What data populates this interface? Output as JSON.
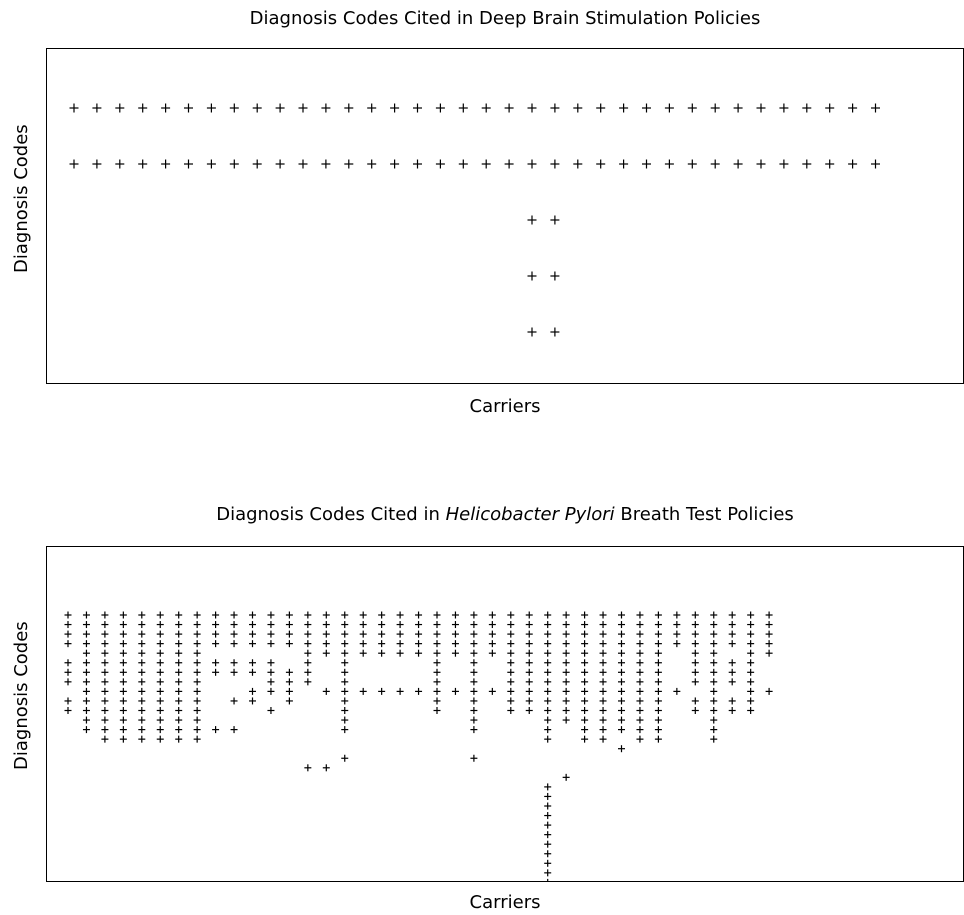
{
  "chart_data": [
    {
      "type": "scatter",
      "title": "Diagnosis Codes Cited in Deep Brain Stimulation Policies",
      "xlabel": "Carriers",
      "ylabel": "Diagnosis Codes",
      "marker": "+",
      "grid": false,
      "n_carriers": 36,
      "n_codes": 5,
      "points": [
        [
          1,
          1
        ],
        [
          2,
          1
        ],
        [
          3,
          1
        ],
        [
          4,
          1
        ],
        [
          5,
          1
        ],
        [
          6,
          1
        ],
        [
          7,
          1
        ],
        [
          8,
          1
        ],
        [
          9,
          1
        ],
        [
          10,
          1
        ],
        [
          11,
          1
        ],
        [
          12,
          1
        ],
        [
          13,
          1
        ],
        [
          14,
          1
        ],
        [
          15,
          1
        ],
        [
          16,
          1
        ],
        [
          17,
          1
        ],
        [
          18,
          1
        ],
        [
          19,
          1
        ],
        [
          20,
          1
        ],
        [
          21,
          1
        ],
        [
          22,
          1
        ],
        [
          23,
          1
        ],
        [
          24,
          1
        ],
        [
          25,
          1
        ],
        [
          26,
          1
        ],
        [
          27,
          1
        ],
        [
          28,
          1
        ],
        [
          29,
          1
        ],
        [
          30,
          1
        ],
        [
          31,
          1
        ],
        [
          32,
          1
        ],
        [
          33,
          1
        ],
        [
          34,
          1
        ],
        [
          35,
          1
        ],
        [
          36,
          1
        ],
        [
          1,
          2
        ],
        [
          2,
          2
        ],
        [
          3,
          2
        ],
        [
          4,
          2
        ],
        [
          5,
          2
        ],
        [
          6,
          2
        ],
        [
          7,
          2
        ],
        [
          8,
          2
        ],
        [
          9,
          2
        ],
        [
          10,
          2
        ],
        [
          11,
          2
        ],
        [
          12,
          2
        ],
        [
          13,
          2
        ],
        [
          14,
          2
        ],
        [
          15,
          2
        ],
        [
          16,
          2
        ],
        [
          17,
          2
        ],
        [
          18,
          2
        ],
        [
          19,
          2
        ],
        [
          20,
          2
        ],
        [
          21,
          2
        ],
        [
          22,
          2
        ],
        [
          23,
          2
        ],
        [
          24,
          2
        ],
        [
          25,
          2
        ],
        [
          26,
          2
        ],
        [
          27,
          2
        ],
        [
          28,
          2
        ],
        [
          29,
          2
        ],
        [
          30,
          2
        ],
        [
          31,
          2
        ],
        [
          32,
          2
        ],
        [
          33,
          2
        ],
        [
          34,
          2
        ],
        [
          35,
          2
        ],
        [
          36,
          2
        ],
        [
          21,
          3
        ],
        [
          22,
          3
        ],
        [
          21,
          4
        ],
        [
          22,
          4
        ],
        [
          21,
          5
        ],
        [
          22,
          5
        ]
      ]
    },
    {
      "type": "scatter",
      "title_prefix": "Diagnosis Codes Cited in ",
      "title_italic": "Helicobacter Pylori",
      "title_suffix": " Breath Test Policies",
      "xlabel": "Carriers",
      "ylabel": "Diagnosis Codes",
      "marker": "+",
      "grid": false,
      "n_carriers": 39,
      "n_codes": 29,
      "columns": [
        {
          "carrier": 1,
          "codes": [
            1,
            2,
            3,
            4,
            6,
            7,
            8,
            10,
            11
          ]
        },
        {
          "carrier": 2,
          "codes": [
            1,
            2,
            3,
            4,
            5,
            6,
            7,
            8,
            9,
            10,
            11,
            12,
            13
          ]
        },
        {
          "carrier": 3,
          "codes": [
            1,
            2,
            3,
            4,
            5,
            6,
            7,
            8,
            9,
            10,
            11,
            12,
            13,
            14
          ]
        },
        {
          "carrier": 4,
          "codes": [
            1,
            2,
            3,
            4,
            5,
            6,
            7,
            8,
            9,
            10,
            11,
            12,
            13,
            14
          ]
        },
        {
          "carrier": 5,
          "codes": [
            1,
            2,
            3,
            4,
            5,
            6,
            7,
            8,
            9,
            10,
            11,
            12,
            13,
            14
          ]
        },
        {
          "carrier": 6,
          "codes": [
            1,
            2,
            3,
            4,
            5,
            6,
            7,
            8,
            9,
            10,
            11,
            12,
            13,
            14
          ]
        },
        {
          "carrier": 7,
          "codes": [
            1,
            2,
            3,
            4,
            5,
            6,
            7,
            8,
            9,
            10,
            11,
            12,
            13,
            14
          ]
        },
        {
          "carrier": 8,
          "codes": [
            1,
            2,
            3,
            4,
            5,
            6,
            7,
            8,
            9,
            10,
            11,
            12,
            13,
            14
          ]
        },
        {
          "carrier": 9,
          "codes": [
            1,
            2,
            3,
            4,
            6,
            7,
            13
          ]
        },
        {
          "carrier": 10,
          "codes": [
            1,
            2,
            3,
            4,
            6,
            7,
            10,
            13
          ]
        },
        {
          "carrier": 11,
          "codes": [
            1,
            2,
            3,
            4,
            6,
            7,
            9,
            10
          ]
        },
        {
          "carrier": 12,
          "codes": [
            1,
            2,
            3,
            4,
            6,
            7,
            8,
            9,
            11
          ]
        },
        {
          "carrier": 13,
          "codes": [
            1,
            2,
            3,
            4,
            7,
            8,
            9,
            10
          ]
        },
        {
          "carrier": 14,
          "codes": [
            1,
            2,
            3,
            4,
            5,
            6,
            7,
            8,
            17
          ]
        },
        {
          "carrier": 15,
          "codes": [
            1,
            2,
            3,
            4,
            5,
            9,
            17
          ]
        },
        {
          "carrier": 16,
          "codes": [
            1,
            2,
            3,
            4,
            5,
            6,
            7,
            8,
            9,
            10,
            11,
            12,
            13,
            16
          ]
        },
        {
          "carrier": 17,
          "codes": [
            1,
            2,
            3,
            4,
            5,
            9
          ]
        },
        {
          "carrier": 18,
          "codes": [
            1,
            2,
            3,
            4,
            5,
            9
          ]
        },
        {
          "carrier": 19,
          "codes": [
            1,
            2,
            3,
            4,
            5,
            9
          ]
        },
        {
          "carrier": 20,
          "codes": [
            1,
            2,
            3,
            4,
            5,
            9
          ]
        },
        {
          "carrier": 21,
          "codes": [
            1,
            2,
            3,
            4,
            5,
            6,
            7,
            8,
            9,
            10,
            11
          ]
        },
        {
          "carrier": 22,
          "codes": [
            1,
            2,
            3,
            4,
            5,
            9
          ]
        },
        {
          "carrier": 23,
          "codes": [
            1,
            2,
            3,
            4,
            5,
            6,
            7,
            8,
            9,
            10,
            11,
            12,
            13,
            16
          ]
        },
        {
          "carrier": 24,
          "codes": [
            1,
            2,
            3,
            4,
            5,
            9
          ]
        },
        {
          "carrier": 25,
          "codes": [
            1,
            2,
            3,
            4,
            5,
            6,
            7,
            8,
            9,
            10,
            11
          ]
        },
        {
          "carrier": 26,
          "codes": [
            1,
            2,
            3,
            4,
            5,
            6,
            7,
            8,
            9,
            10,
            11
          ]
        },
        {
          "carrier": 27,
          "codes": [
            1,
            2,
            3,
            4,
            5,
            6,
            7,
            8,
            9,
            10,
            11,
            12,
            13,
            14,
            19,
            20,
            21,
            22,
            23,
            24,
            25,
            26,
            27,
            28,
            29
          ]
        },
        {
          "carrier": 28,
          "codes": [
            1,
            2,
            3,
            4,
            5,
            6,
            7,
            8,
            9,
            10,
            11,
            12,
            18
          ]
        },
        {
          "carrier": 29,
          "codes": [
            1,
            2,
            3,
            4,
            5,
            6,
            7,
            8,
            9,
            10,
            11,
            12,
            13,
            14
          ]
        },
        {
          "carrier": 30,
          "codes": [
            1,
            2,
            3,
            4,
            5,
            6,
            7,
            8,
            9,
            10,
            11,
            12,
            13,
            14
          ]
        },
        {
          "carrier": 31,
          "codes": [
            1,
            2,
            3,
            4,
            5,
            6,
            7,
            8,
            9,
            10,
            11,
            12,
            13,
            15
          ]
        },
        {
          "carrier": 32,
          "codes": [
            1,
            2,
            3,
            4,
            5,
            6,
            7,
            8,
            9,
            10,
            11,
            12,
            13,
            14
          ]
        },
        {
          "carrier": 33,
          "codes": [
            1,
            2,
            3,
            4,
            5,
            6,
            7,
            8,
            9,
            10,
            11,
            12,
            13,
            14
          ]
        },
        {
          "carrier": 34,
          "codes": [
            1,
            2,
            3,
            4,
            9
          ]
        },
        {
          "carrier": 35,
          "codes": [
            1,
            2,
            3,
            4,
            5,
            6,
            7,
            8,
            10,
            11
          ]
        },
        {
          "carrier": 36,
          "codes": [
            1,
            2,
            3,
            4,
            5,
            6,
            7,
            8,
            9,
            10,
            11,
            12,
            13,
            14
          ]
        },
        {
          "carrier": 37,
          "codes": [
            1,
            2,
            3,
            4,
            6,
            7,
            8,
            10,
            11
          ]
        },
        {
          "carrier": 38,
          "codes": [
            1,
            2,
            3,
            4,
            5,
            6,
            7,
            8,
            9,
            10,
            11
          ]
        },
        {
          "carrier": 39,
          "codes": [
            1,
            2,
            3,
            4,
            5,
            9
          ]
        }
      ]
    }
  ]
}
